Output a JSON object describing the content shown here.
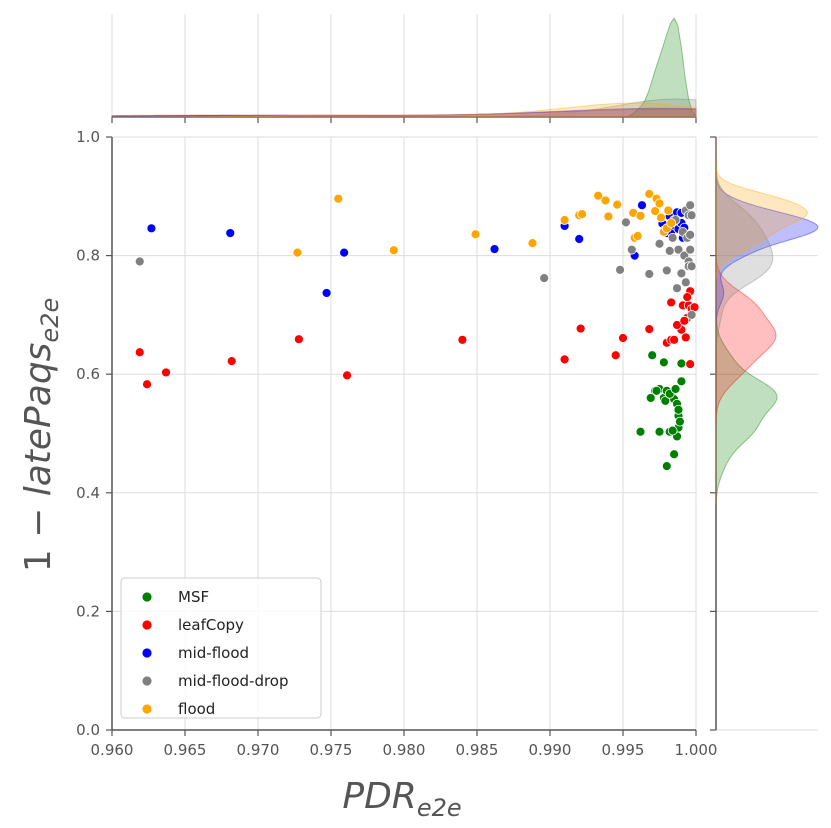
{
  "chart_data": {
    "type": "scatter",
    "title": "",
    "xlabel": {
      "main": "PDR",
      "sub": "e2e"
    },
    "ylabel": {
      "prefix": "1 − ",
      "main": "latePaqs",
      "sub": "e2e"
    },
    "xlim": [
      0.96,
      1.0
    ],
    "ylim": [
      0.0,
      1.0
    ],
    "xticks": [
      "0.960",
      "0.965",
      "0.970",
      "0.975",
      "0.980",
      "0.985",
      "0.990",
      "0.995",
      "1.000"
    ],
    "yticks": [
      "0.0",
      "0.2",
      "0.4",
      "0.6",
      "0.8",
      "1.0"
    ],
    "grid": true,
    "legend_position": "lower-left",
    "marginal_plots": "kde (top: x, right: y)",
    "series": [
      {
        "name": "MSF",
        "color": "#008000",
        "points": [
          [
            0.9962,
            0.503
          ],
          [
            0.997,
            0.632
          ],
          [
            0.9972,
            0.572
          ],
          [
            0.9975,
            0.575
          ],
          [
            0.9978,
            0.62
          ],
          [
            0.998,
            0.445
          ],
          [
            0.9982,
            0.503
          ],
          [
            0.9985,
            0.465
          ],
          [
            0.9987,
            0.495
          ],
          [
            0.9988,
            0.53
          ],
          [
            0.999,
            0.588
          ],
          [
            0.999,
            0.618
          ],
          [
            0.9975,
            0.503
          ],
          [
            0.9978,
            0.56
          ],
          [
            0.998,
            0.572
          ],
          [
            0.9983,
            0.565
          ],
          [
            0.9985,
            0.558
          ],
          [
            0.9987,
            0.55
          ],
          [
            0.9988,
            0.51
          ],
          [
            0.9989,
            0.52
          ],
          [
            0.9969,
            0.56
          ],
          [
            0.9973,
            0.572
          ],
          [
            0.9979,
            0.555
          ],
          [
            0.9982,
            0.567
          ],
          [
            0.9986,
            0.575
          ],
          [
            0.9988,
            0.54
          ],
          [
            0.9984,
            0.505
          ]
        ]
      },
      {
        "name": "leafCopy",
        "color": "#ff0000",
        "points": [
          [
            0.9619,
            0.637
          ],
          [
            0.9624,
            0.583
          ],
          [
            0.9637,
            0.603
          ],
          [
            0.9682,
            0.622
          ],
          [
            0.9728,
            0.659
          ],
          [
            0.9761,
            0.598
          ],
          [
            0.984,
            0.658
          ],
          [
            0.991,
            0.625
          ],
          [
            0.9921,
            0.677
          ],
          [
            0.9945,
            0.632
          ],
          [
            0.995,
            0.661
          ],
          [
            0.9968,
            0.676
          ],
          [
            0.998,
            0.653
          ],
          [
            0.9983,
            0.658
          ],
          [
            0.9985,
            0.658
          ],
          [
            0.999,
            0.675
          ],
          [
            0.9991,
            0.716
          ],
          [
            0.9993,
            0.662
          ],
          [
            0.9994,
            0.695
          ],
          [
            0.9995,
            0.716
          ],
          [
            0.9996,
            0.74
          ],
          [
            0.9996,
            0.617
          ],
          [
            0.9997,
            0.71
          ],
          [
            0.9999,
            0.713
          ],
          [
            0.9983,
            0.721
          ],
          [
            0.9987,
            0.683
          ],
          [
            0.9992,
            0.69
          ],
          [
            0.9994,
            0.73
          ]
        ]
      },
      {
        "name": "mid-flood",
        "color": "#0000ff",
        "points": [
          [
            0.9627,
            0.846
          ],
          [
            0.9681,
            0.838
          ],
          [
            0.9747,
            0.737
          ],
          [
            0.9759,
            0.805
          ],
          [
            0.9862,
            0.811
          ],
          [
            0.991,
            0.85
          ],
          [
            0.992,
            0.828
          ],
          [
            0.9958,
            0.8
          ],
          [
            0.9963,
            0.885
          ],
          [
            0.9977,
            0.854
          ],
          [
            0.998,
            0.838
          ],
          [
            0.9982,
            0.866
          ],
          [
            0.9983,
            0.84
          ],
          [
            0.9985,
            0.86
          ],
          [
            0.9986,
            0.85
          ],
          [
            0.9987,
            0.873
          ],
          [
            0.9988,
            0.845
          ],
          [
            0.999,
            0.855
          ],
          [
            0.999,
            0.872
          ],
          [
            0.9991,
            0.83
          ],
          [
            0.9992,
            0.847
          ]
        ]
      },
      {
        "name": "mid-flood-drop",
        "color": "#808080",
        "points": [
          [
            0.9619,
            0.79
          ],
          [
            0.9896,
            0.762
          ],
          [
            0.9948,
            0.776
          ],
          [
            0.9952,
            0.856
          ],
          [
            0.9956,
            0.81
          ],
          [
            0.9968,
            0.769
          ],
          [
            0.9975,
            0.82
          ],
          [
            0.9978,
            0.842
          ],
          [
            0.998,
            0.775
          ],
          [
            0.9982,
            0.808
          ],
          [
            0.9984,
            0.83
          ],
          [
            0.9986,
            0.86
          ],
          [
            0.9987,
            0.745
          ],
          [
            0.9988,
            0.81
          ],
          [
            0.999,
            0.77
          ],
          [
            0.9991,
            0.84
          ],
          [
            0.9992,
            0.8
          ],
          [
            0.9993,
            0.755
          ],
          [
            0.9993,
            0.876
          ],
          [
            0.9994,
            0.83
          ],
          [
            0.9995,
            0.79
          ],
          [
            0.9995,
            0.782
          ],
          [
            0.9995,
            0.868
          ],
          [
            0.9996,
            0.885
          ],
          [
            0.9996,
            0.835
          ],
          [
            0.9996,
            0.81
          ],
          [
            0.9997,
            0.7
          ],
          [
            0.9997,
            0.782
          ],
          [
            0.9997,
            0.868
          ]
        ]
      },
      {
        "name": "flood",
        "color": "#ffa500",
        "points": [
          [
            0.9727,
            0.805
          ],
          [
            0.9755,
            0.896
          ],
          [
            0.9793,
            0.809
          ],
          [
            0.9849,
            0.836
          ],
          [
            0.9888,
            0.821
          ],
          [
            0.991,
            0.86
          ],
          [
            0.992,
            0.868
          ],
          [
            0.9922,
            0.87
          ],
          [
            0.9933,
            0.901
          ],
          [
            0.9938,
            0.893
          ],
          [
            0.994,
            0.866
          ],
          [
            0.9946,
            0.886
          ],
          [
            0.9957,
            0.872
          ],
          [
            0.9958,
            0.83
          ],
          [
            0.996,
            0.833
          ],
          [
            0.9962,
            0.867
          ],
          [
            0.9968,
            0.904
          ],
          [
            0.9972,
            0.875
          ],
          [
            0.9973,
            0.896
          ],
          [
            0.9975,
            0.888
          ],
          [
            0.9976,
            0.864
          ],
          [
            0.9978,
            0.84
          ],
          [
            0.998,
            0.846
          ],
          [
            0.9981,
            0.876
          ],
          [
            0.9983,
            0.855
          ]
        ]
      }
    ]
  }
}
